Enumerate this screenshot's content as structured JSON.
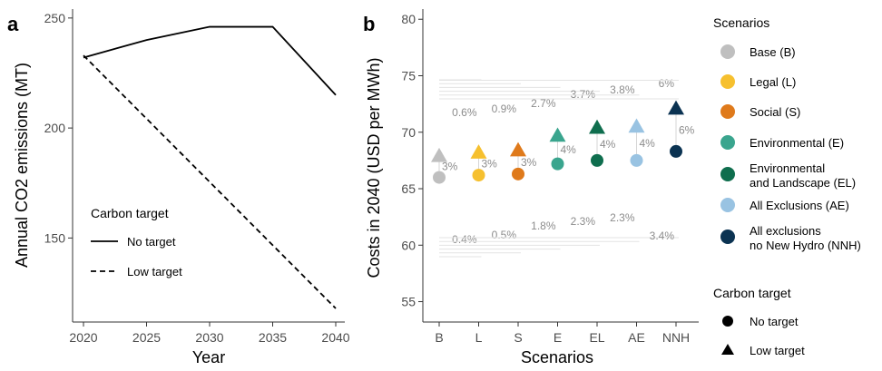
{
  "chart_data": [
    {
      "panel": "a",
      "type": "line",
      "xlabel": "Year",
      "ylabel": "Annual CO2 emissions (MT)",
      "x_ticks": [
        "2020",
        "2025",
        "2030",
        "2035",
        "2040"
      ],
      "y_ticks": [
        "150",
        "200",
        "250"
      ],
      "xlim": [
        2020,
        2040
      ],
      "ylim": [
        118,
        252
      ],
      "legend": {
        "title": "Carbon target",
        "placement": "bottom-left"
      },
      "series": [
        {
          "name": "No target",
          "style": "solid",
          "x": [
            2020,
            2025,
            2030,
            2035,
            2040
          ],
          "y": [
            232,
            240,
            246,
            246,
            215
          ]
        },
        {
          "name": "Low target",
          "style": "dashed",
          "x": [
            2020,
            2040
          ],
          "y": [
            233,
            118
          ]
        }
      ]
    },
    {
      "panel": "b",
      "type": "scatter",
      "xlabel": "Scenarios",
      "ylabel": "Costs in 2040 (USD per MWh)",
      "categories": [
        "B",
        "L",
        "S",
        "E",
        "EL",
        "AE",
        "NNH"
      ],
      "y_ticks": [
        "55",
        "60",
        "65",
        "70",
        "75",
        "80"
      ],
      "ylim": [
        54,
        80.5
      ],
      "no_target": [
        66.0,
        66.2,
        66.3,
        67.2,
        67.5,
        67.5,
        68.3
      ],
      "low_target": [
        67.9,
        68.2,
        68.4,
        69.7,
        70.4,
        70.5,
        72.1
      ],
      "diff_labels": [
        "3%",
        "3%",
        "3%",
        "4%",
        "4%",
        "4%",
        "6%"
      ],
      "low_vs_base_labels": [
        "0.6%",
        "0.9%",
        "2.7%",
        "3.7%",
        "3.8%",
        "6%"
      ],
      "no_vs_base_labels": [
        "0.4%",
        "0.5%",
        "1.8%",
        "2.3%",
        "2.3%",
        "3.4%"
      ],
      "colors": [
        "#bfbfbf",
        "#f6c02f",
        "#df7a1b",
        "#3aa58e",
        "#0f6e4e",
        "#99c3e2",
        "#0b3352"
      ],
      "scenarios_legend": {
        "title": "Scenarios",
        "items": [
          {
            "label": "Base (B)"
          },
          {
            "label": "Legal (L)"
          },
          {
            "label": "Social (S)"
          },
          {
            "label": "Environmental (E)"
          },
          {
            "line1": "Environmental",
            "line2": "and Landscape (EL)"
          },
          {
            "label": "All Exclusions (AE)"
          },
          {
            "line1": "All exclusions",
            "line2": "no New Hydro (NNH)"
          }
        ]
      },
      "target_legend": {
        "title": "Carbon target",
        "items": [
          "No target",
          "Low target"
        ]
      }
    }
  ]
}
